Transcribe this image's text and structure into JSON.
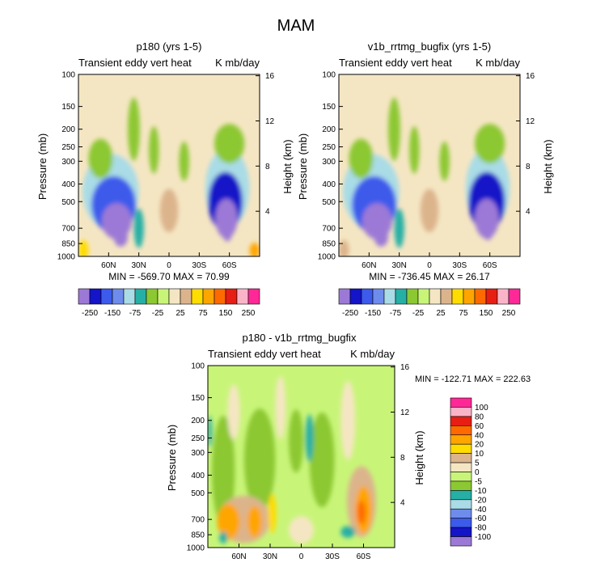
{
  "figure": {
    "title": "MAM"
  },
  "colors": {
    "frame": "#000000",
    "band": [
      "#9C79D6",
      "#1414C8",
      "#3C5AEB",
      "#6E8CEB",
      "#A9DCE6",
      "#26AFA5",
      "#8CC832",
      "#C8F578",
      "#F5E6C3",
      "#DCB48C",
      "#FFDC00",
      "#FFA500",
      "#FF6A00",
      "#E61E14",
      "#FAB4C8",
      "#FF2896"
    ]
  },
  "chart_data": [
    {
      "id": "p180",
      "type": "heatmap",
      "title": "p180 (yrs 1-5)",
      "left_string": "Transient eddy vert heat",
      "right_string": "K mb/day",
      "ylabel": "Pressure (mb)",
      "ylabel_right": "Height (km)",
      "x_ticks": [
        "60N",
        "30N",
        "0",
        "30S",
        "60S"
      ],
      "x_tick_values": [
        60,
        30,
        0,
        -30,
        -60
      ],
      "xlim": [
        90,
        -90
      ],
      "y_ticks": [
        "100",
        "150",
        "200",
        "250",
        "300",
        "400",
        "500",
        "700",
        "850",
        "1000"
      ],
      "y_tick_values": [
        100,
        150,
        200,
        250,
        300,
        400,
        500,
        700,
        850,
        1000
      ],
      "ylim": [
        1000,
        100
      ],
      "y_right_ticks": [
        "16",
        "12",
        "8",
        "4"
      ],
      "y_right_values": [
        16,
        12,
        8,
        4
      ],
      "min_max": "MIN = -569.70  MAX = 70.99",
      "colorbar_labels": [
        "-250",
        "-150",
        "-75",
        "-25",
        "25",
        "75",
        "150",
        "250"
      ],
      "levels": [
        -250,
        -200,
        -150,
        -100,
        -75,
        -50,
        -25,
        -10,
        10,
        25,
        50,
        75,
        100,
        150,
        200,
        250
      ],
      "background_level": "0",
      "cells": [
        {
          "lat": 58,
          "p": 440,
          "dlat": 56,
          "dlnp": 0.95,
          "v": -90
        },
        {
          "lat": 55,
          "p": 520,
          "dlat": 44,
          "dlnp": 0.72,
          "v": -180
        },
        {
          "lat": 52,
          "p": 640,
          "dlat": 30,
          "dlnp": 0.46,
          "v": -300
        },
        {
          "lat": 48,
          "p": 780,
          "dlat": 14,
          "dlnp": 0.25,
          "v": -470
        },
        {
          "lat": 30,
          "p": 700,
          "dlat": 10,
          "dlnp": 0.5,
          "v": -60
        },
        {
          "lat": 68,
          "p": 290,
          "dlat": 24,
          "dlnp": 0.5,
          "v": -30
        },
        {
          "lat": -58,
          "p": 420,
          "dlat": 44,
          "dlnp": 1.0,
          "v": -90
        },
        {
          "lat": -56,
          "p": 500,
          "dlat": 34,
          "dlnp": 0.75,
          "v": -200
        },
        {
          "lat": -57,
          "p": 620,
          "dlat": 22,
          "dlnp": 0.5,
          "v": -330
        },
        {
          "lat": -58,
          "p": 720,
          "dlat": 10,
          "dlnp": 0.28,
          "v": -560
        },
        {
          "lat": -60,
          "p": 240,
          "dlat": 30,
          "dlnp": 0.5,
          "v": -30
        },
        {
          "lat": 15,
          "p": 260,
          "dlat": 10,
          "dlnp": 0.6,
          "v": -30
        },
        {
          "lat": -15,
          "p": 300,
          "dlat": 10,
          "dlnp": 0.5,
          "v": -30
        },
        {
          "lat": 0,
          "p": 560,
          "dlat": 18,
          "dlnp": 0.55,
          "v": 15
        },
        {
          "lat": 85,
          "p": 920,
          "dlat": 10,
          "dlnp": 0.25,
          "v": 40
        },
        {
          "lat": -85,
          "p": 930,
          "dlat": 10,
          "dlnp": 0.2,
          "v": 60
        },
        {
          "lat": 35,
          "p": 200,
          "dlat": 12,
          "dlnp": 0.8,
          "v": -28
        }
      ]
    },
    {
      "id": "v1b",
      "type": "heatmap",
      "title": "v1b_rrtmg_bugfix (yrs 1-5)",
      "left_string": "Transient eddy vert heat",
      "right_string": "K mb/day",
      "ylabel": "Pressure (mb)",
      "ylabel_right": "Height (km)",
      "x_ticks": [
        "60N",
        "30N",
        "0",
        "30S",
        "60S"
      ],
      "x_tick_values": [
        60,
        30,
        0,
        -30,
        -60
      ],
      "xlim": [
        90,
        -90
      ],
      "y_ticks": [
        "100",
        "150",
        "200",
        "250",
        "300",
        "400",
        "500",
        "700",
        "850",
        "1000"
      ],
      "y_tick_values": [
        100,
        150,
        200,
        250,
        300,
        400,
        500,
        700,
        850,
        1000
      ],
      "ylim": [
        1000,
        100
      ],
      "y_right_ticks": [
        "16",
        "12",
        "8",
        "4"
      ],
      "y_right_values": [
        16,
        12,
        8,
        4
      ],
      "min_max": "MIN = -736.45  MAX = 26.17",
      "colorbar_labels": [
        "-250",
        "-150",
        "-75",
        "-25",
        "25",
        "75",
        "150",
        "250"
      ],
      "levels": [
        -250,
        -200,
        -150,
        -100,
        -75,
        -50,
        -25,
        -10,
        10,
        25,
        50,
        75,
        100,
        150,
        200,
        250
      ],
      "background_level": "0",
      "cells": [
        {
          "lat": 58,
          "p": 440,
          "dlat": 56,
          "dlnp": 0.95,
          "v": -90
        },
        {
          "lat": 55,
          "p": 520,
          "dlat": 44,
          "dlnp": 0.72,
          "v": -180
        },
        {
          "lat": 52,
          "p": 640,
          "dlat": 30,
          "dlnp": 0.46,
          "v": -300
        },
        {
          "lat": 48,
          "p": 780,
          "dlat": 14,
          "dlnp": 0.25,
          "v": -480
        },
        {
          "lat": 30,
          "p": 700,
          "dlat": 10,
          "dlnp": 0.5,
          "v": -60
        },
        {
          "lat": 68,
          "p": 290,
          "dlat": 24,
          "dlnp": 0.5,
          "v": -30
        },
        {
          "lat": -58,
          "p": 420,
          "dlat": 44,
          "dlnp": 1.0,
          "v": -95
        },
        {
          "lat": -57,
          "p": 500,
          "dlat": 36,
          "dlnp": 0.75,
          "v": -220
        },
        {
          "lat": -57,
          "p": 620,
          "dlat": 24,
          "dlnp": 0.5,
          "v": -380
        },
        {
          "lat": -58,
          "p": 700,
          "dlat": 12,
          "dlnp": 0.3,
          "v": -700
        },
        {
          "lat": -60,
          "p": 240,
          "dlat": 30,
          "dlnp": 0.5,
          "v": -30
        },
        {
          "lat": 15,
          "p": 260,
          "dlat": 10,
          "dlnp": 0.6,
          "v": -30
        },
        {
          "lat": -15,
          "p": 300,
          "dlat": 10,
          "dlnp": 0.5,
          "v": -30
        },
        {
          "lat": 0,
          "p": 560,
          "dlat": 18,
          "dlnp": 0.55,
          "v": 15
        },
        {
          "lat": 85,
          "p": 920,
          "dlat": 10,
          "dlnp": 0.25,
          "v": 20
        },
        {
          "lat": 35,
          "p": 200,
          "dlat": 12,
          "dlnp": 0.8,
          "v": -28
        }
      ]
    },
    {
      "id": "diff",
      "type": "heatmap",
      "title": "p180 - v1b_rrtmg_bugfix",
      "left_string": "Transient eddy vert heat",
      "right_string": "K mb/day",
      "ylabel": "Pressure (mb)",
      "ylabel_right": "Height (km)",
      "x_ticks": [
        "60N",
        "30N",
        "0",
        "30S",
        "60S"
      ],
      "x_tick_values": [
        60,
        30,
        0,
        -30,
        -60
      ],
      "xlim": [
        90,
        -90
      ],
      "y_ticks": [
        "100",
        "150",
        "200",
        "250",
        "300",
        "400",
        "500",
        "700",
        "850",
        "1000"
      ],
      "y_tick_values": [
        100,
        150,
        200,
        250,
        300,
        400,
        500,
        700,
        850,
        1000
      ],
      "ylim": [
        1000,
        100
      ],
      "y_right_ticks": [
        "16",
        "12",
        "8",
        "4"
      ],
      "y_right_values": [
        16,
        12,
        8,
        4
      ],
      "min_max": "MIN = -122.71   MAX = 222.63",
      "colorbar_labels": [
        "100",
        "80",
        "60",
        "40",
        "20",
        "10",
        "5",
        "0",
        "-5",
        "-10",
        "-20",
        "-40",
        "-60",
        "-80",
        "-100"
      ],
      "levels": [
        -100,
        -80,
        -60,
        -40,
        -20,
        -10,
        -5,
        0,
        5,
        10,
        20,
        40,
        60,
        80,
        100
      ],
      "background_level": "-2",
      "cells": [
        {
          "lat": 75,
          "p": 380,
          "dlat": 22,
          "dlnp": 1.4,
          "v": -6
        },
        {
          "lat": 40,
          "p": 330,
          "dlat": 30,
          "dlnp": 1.3,
          "v": -6
        },
        {
          "lat": -20,
          "p": 330,
          "dlat": 24,
          "dlnp": 1.2,
          "v": -6
        },
        {
          "lat": 5,
          "p": 260,
          "dlat": 14,
          "dlnp": 0.8,
          "v": -8
        },
        {
          "lat": -8,
          "p": 250,
          "dlat": 8,
          "dlnp": 0.6,
          "v": -14
        },
        {
          "lat": 88,
          "p": 230,
          "dlat": 4,
          "dlnp": 0.4,
          "v": -12
        },
        {
          "lat": 65,
          "p": 180,
          "dlat": 12,
          "dlnp": 0.7,
          "v": 3
        },
        {
          "lat": 20,
          "p": 170,
          "dlat": 10,
          "dlnp": 0.8,
          "v": 3
        },
        {
          "lat": -45,
          "p": 200,
          "dlat": 14,
          "dlnp": 1.0,
          "v": 3
        },
        {
          "lat": 55,
          "p": 700,
          "dlat": 50,
          "dlnp": 0.6,
          "v": 6
        },
        {
          "lat": 70,
          "p": 720,
          "dlat": 22,
          "dlnp": 0.45,
          "v": 25
        },
        {
          "lat": 45,
          "p": 720,
          "dlat": 14,
          "dlnp": 0.4,
          "v": 22
        },
        {
          "lat": 28,
          "p": 650,
          "dlat": 8,
          "dlnp": 0.5,
          "v": 12
        },
        {
          "lat": -58,
          "p": 560,
          "dlat": 28,
          "dlnp": 0.9,
          "v": 8
        },
        {
          "lat": -60,
          "p": 620,
          "dlat": 16,
          "dlnp": 0.6,
          "v": 28
        },
        {
          "lat": -58,
          "p": 640,
          "dlat": 8,
          "dlnp": 0.3,
          "v": 48
        },
        {
          "lat": -45,
          "p": 820,
          "dlat": 14,
          "dlnp": 0.15,
          "v": -18
        },
        {
          "lat": 75,
          "p": 880,
          "dlat": 8,
          "dlnp": 0.15,
          "v": -15
        },
        {
          "lat": 0,
          "p": 800,
          "dlat": 24,
          "dlnp": 0.35,
          "v": 3
        }
      ]
    }
  ]
}
